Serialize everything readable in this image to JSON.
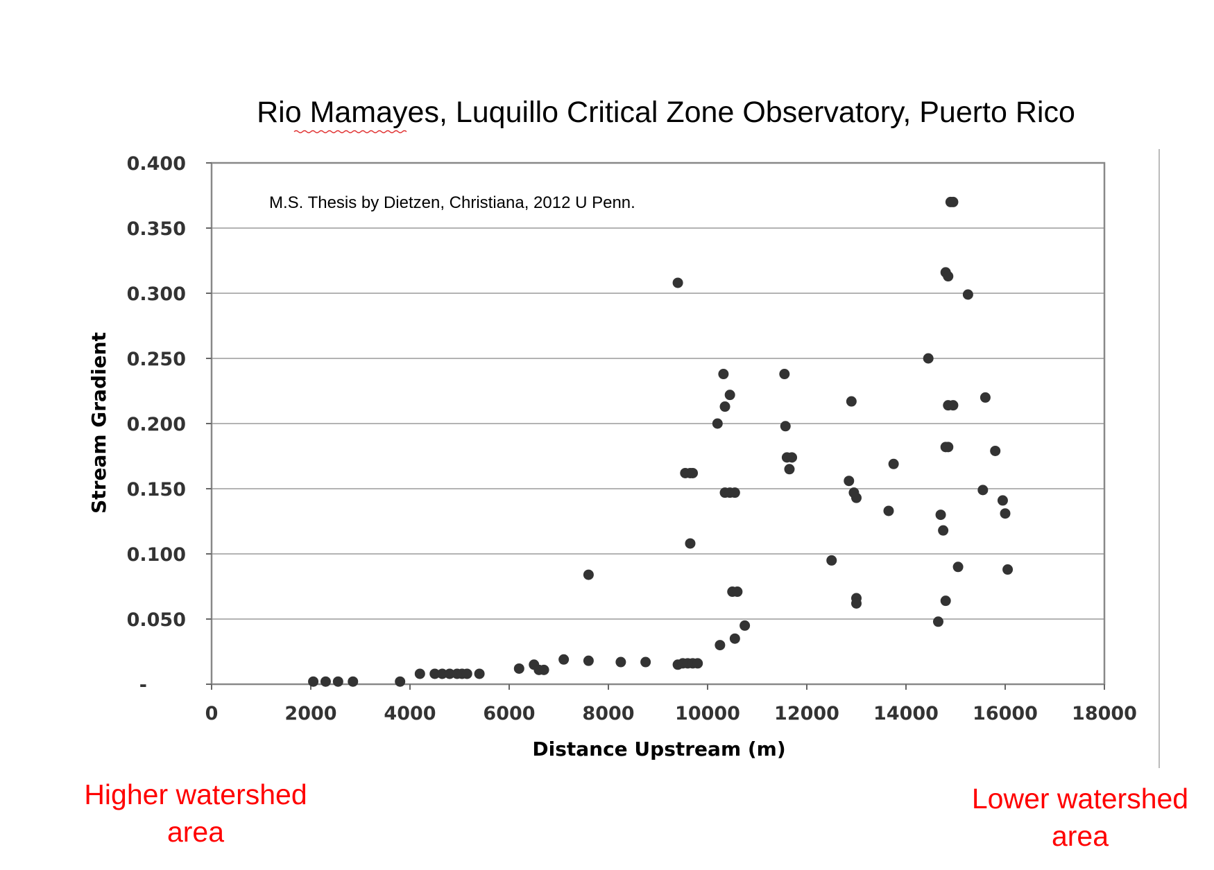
{
  "chart_data": {
    "type": "scatter",
    "title": "Rio Mamayes, Luquillo Critical Zone Observatory, Puerto Rico",
    "note": "M.S. Thesis by Dietzen, Christiana, 2012 U Penn.",
    "xlabel": "Distance Upstream (m)",
    "ylabel": "Stream Gradient",
    "xlim": [
      0,
      18000
    ],
    "ylim": [
      0,
      0.4
    ],
    "x_ticks": [
      0,
      2000,
      4000,
      6000,
      8000,
      10000,
      12000,
      14000,
      16000,
      18000
    ],
    "x_tick_labels": [
      "0",
      "2000",
      "4000",
      "6000",
      "8000",
      "10000",
      "12000",
      "14000",
      "16000",
      "18000"
    ],
    "y_ticks": [
      0,
      0.05,
      0.1,
      0.15,
      0.2,
      0.25,
      0.3,
      0.35,
      0.4
    ],
    "y_tick_labels": [
      "-",
      "0.050",
      "0.100",
      "0.150",
      "0.200",
      "0.250",
      "0.300",
      "0.350",
      "0.400"
    ],
    "grid": "horizontal",
    "marker_color": "#333333",
    "points": [
      [
        2050,
        0.002
      ],
      [
        2300,
        0.002
      ],
      [
        2550,
        0.002
      ],
      [
        2850,
        0.002
      ],
      [
        3800,
        0.002
      ],
      [
        4200,
        0.008
      ],
      [
        4500,
        0.008
      ],
      [
        4650,
        0.008
      ],
      [
        4800,
        0.008
      ],
      [
        4950,
        0.008
      ],
      [
        5050,
        0.008
      ],
      [
        5150,
        0.008
      ],
      [
        5400,
        0.008
      ],
      [
        6200,
        0.012
      ],
      [
        6500,
        0.015
      ],
      [
        6600,
        0.011
      ],
      [
        6700,
        0.011
      ],
      [
        7100,
        0.019
      ],
      [
        7600,
        0.018
      ],
      [
        7600,
        0.084
      ],
      [
        8250,
        0.017
      ],
      [
        8750,
        0.017
      ],
      [
        9400,
        0.308
      ],
      [
        9400,
        0.015
      ],
      [
        9500,
        0.016
      ],
      [
        9600,
        0.016
      ],
      [
        9700,
        0.016
      ],
      [
        9800,
        0.016
      ],
      [
        9550,
        0.162
      ],
      [
        9650,
        0.162
      ],
      [
        9700,
        0.162
      ],
      [
        9650,
        0.108
      ],
      [
        10200,
        0.2
      ],
      [
        10250,
        0.03
      ],
      [
        10320,
        0.238
      ],
      [
        10350,
        0.213
      ],
      [
        10450,
        0.222
      ],
      [
        10350,
        0.147
      ],
      [
        10450,
        0.147
      ],
      [
        10550,
        0.147
      ],
      [
        10500,
        0.071
      ],
      [
        10600,
        0.071
      ],
      [
        10550,
        0.035
      ],
      [
        10750,
        0.045
      ],
      [
        11550,
        0.238
      ],
      [
        11570,
        0.198
      ],
      [
        11600,
        0.174
      ],
      [
        11700,
        0.174
      ],
      [
        11650,
        0.165
      ],
      [
        12500,
        0.095
      ],
      [
        12850,
        0.156
      ],
      [
        12900,
        0.217
      ],
      [
        12950,
        0.147
      ],
      [
        13000,
        0.143
      ],
      [
        13000,
        0.066
      ],
      [
        13000,
        0.062
      ],
      [
        13650,
        0.133
      ],
      [
        13750,
        0.169
      ],
      [
        14450,
        0.25
      ],
      [
        14650,
        0.048
      ],
      [
        14700,
        0.13
      ],
      [
        14750,
        0.118
      ],
      [
        14800,
        0.064
      ],
      [
        14800,
        0.316
      ],
      [
        14850,
        0.313
      ],
      [
        14800,
        0.182
      ],
      [
        14850,
        0.182
      ],
      [
        14850,
        0.214
      ],
      [
        14950,
        0.214
      ],
      [
        14900,
        0.37
      ],
      [
        14950,
        0.37
      ],
      [
        15050,
        0.09
      ],
      [
        15250,
        0.299
      ],
      [
        15550,
        0.149
      ],
      [
        15600,
        0.22
      ],
      [
        15800,
        0.179
      ],
      [
        15950,
        0.141
      ],
      [
        16000,
        0.131
      ],
      [
        16050,
        0.088
      ]
    ]
  },
  "annotations": {
    "left": [
      "Higher watershed",
      "area"
    ],
    "right": [
      "Lower watershed",
      "area"
    ]
  }
}
